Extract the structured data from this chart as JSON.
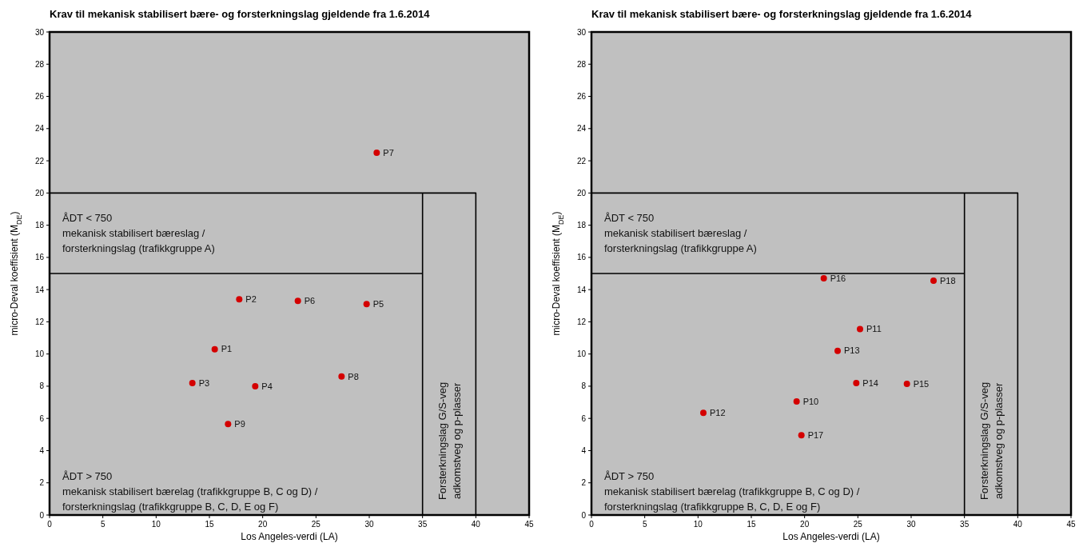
{
  "chart_data": [
    {
      "type": "scatter",
      "title": "Krav til mekanisk stabilisert bære- og forsterkningslag gjeldende fra 1.6.2014",
      "xlabel": "Los Angeles-verdi (LA)",
      "ylabel": "micro-Deval koeffisient (M$_{DE}$)",
      "xlim": [
        0,
        45
      ],
      "xticks": [
        0,
        5,
        10,
        15,
        20,
        25,
        30,
        35,
        40,
        45
      ],
      "ylim": [
        0,
        30
      ],
      "yticks": [
        0,
        2,
        4,
        6,
        8,
        10,
        12,
        14,
        16,
        18,
        20,
        22,
        24,
        26,
        28,
        30
      ],
      "grid": false,
      "series": [
        {
          "marker": "circle",
          "color": "#d40000",
          "x": [
            15.5,
            17.8,
            13.4,
            19.3,
            29.75,
            23.3,
            30.7,
            27.4,
            16.75
          ],
          "values": [
            10.3,
            13.4,
            8.2,
            8.0,
            13.1,
            13.3,
            22.5,
            8.6,
            5.65
          ]
        },
        {
          "type": "line",
          "marker": "none",
          "color": "#000000",
          "x": [
            0,
            35,
            null,
            0,
            40,
            40,
            null,
            35,
            35
          ],
          "values": [
            15,
            15,
            null,
            20,
            20,
            0,
            null,
            0,
            20
          ]
        }
      ],
      "annotations": [
        {
          "text": "P1",
          "x": 15.5,
          "y": 10.3
        },
        {
          "text": "P2",
          "x": 17.8,
          "y": 13.4
        },
        {
          "text": "P3",
          "x": 13.4,
          "y": 8.2
        },
        {
          "text": "P4",
          "x": 19.3,
          "y": 8.0
        },
        {
          "text": "P5",
          "x": 29.75,
          "y": 13.1
        },
        {
          "text": "P6",
          "x": 23.3,
          "y": 13.3
        },
        {
          "text": "P7",
          "x": 30.7,
          "y": 22.5
        },
        {
          "text": "P8",
          "x": 27.4,
          "y": 8.6
        },
        {
          "text": "P9",
          "x": 16.75,
          "y": 5.65
        },
        "ÅDT < 750",
        "mekanisk stabilisert bæreslag /",
        "forsterkningslag (trafikkgruppe A)",
        "ÅDT > 750",
        "mekanisk stabilisert bærelag (trafikkgruppe B, C og D) /",
        "forsterkningslag (trafikkgruppe B, C, D, E og F)",
        "Forsterkningslag G/S-veg",
        "adkomstveg og p-plasser"
      ]
    },
    {
      "type": "scatter",
      "title": "Krav til mekanisk stabilisert bære- og forsterkningslag gjeldende fra 1.6.2014",
      "xlabel": "Los Angeles-verdi (LA)",
      "ylabel": "micro-Deval koeffisient (M$_{DE}$)",
      "xlim": [
        0,
        45
      ],
      "xticks": [
        0,
        5,
        10,
        15,
        20,
        25,
        30,
        35,
        40,
        45
      ],
      "ylim": [
        0,
        30
      ],
      "yticks": [
        0,
        2,
        4,
        6,
        8,
        10,
        12,
        14,
        16,
        18,
        20,
        22,
        24,
        26,
        28,
        30
      ],
      "grid": false,
      "series": [
        {
          "marker": "circle",
          "color": "#d40000",
          "x": [
            19.25,
            25.2,
            10.5,
            23.1,
            24.85,
            29.6,
            21.8,
            19.7,
            32.1
          ],
          "values": [
            7.05,
            11.55,
            6.35,
            10.2,
            8.2,
            8.15,
            14.7,
            4.95,
            14.55
          ]
        },
        {
          "type": "line",
          "marker": "none",
          "color": "#000000",
          "x": [
            0,
            35,
            null,
            0,
            40,
            40,
            null,
            35,
            35
          ],
          "values": [
            15,
            15,
            null,
            20,
            20,
            0,
            null,
            0,
            20
          ]
        }
      ],
      "annotations": [
        {
          "text": "P10",
          "x": 19.25,
          "y": 7.05
        },
        {
          "text": "P11",
          "x": 25.2,
          "y": 11.55
        },
        {
          "text": "P12",
          "x": 10.5,
          "y": 6.35
        },
        {
          "text": "P13",
          "x": 23.1,
          "y": 10.2
        },
        {
          "text": "P14",
          "x": 24.85,
          "y": 8.2
        },
        {
          "text": "P15",
          "x": 29.6,
          "y": 8.15
        },
        {
          "text": "P16",
          "x": 21.8,
          "y": 14.7
        },
        {
          "text": "P17",
          "x": 19.7,
          "y": 4.95
        },
        {
          "text": "P18",
          "x": 32.1,
          "y": 14.55
        },
        "ÅDT < 750",
        "mekanisk stabilisert bæreslag /",
        "forsterkningslag (trafikkgruppe A)",
        "ÅDT > 750",
        "mekanisk stabilisert bærelag (trafikkgruppe B, C og D) /",
        "forsterkningslag (trafikkgruppe B, C, D, E og F)",
        "Forsterkningslag G/S-veg",
        "adkomstveg og p-plasser"
      ]
    }
  ]
}
